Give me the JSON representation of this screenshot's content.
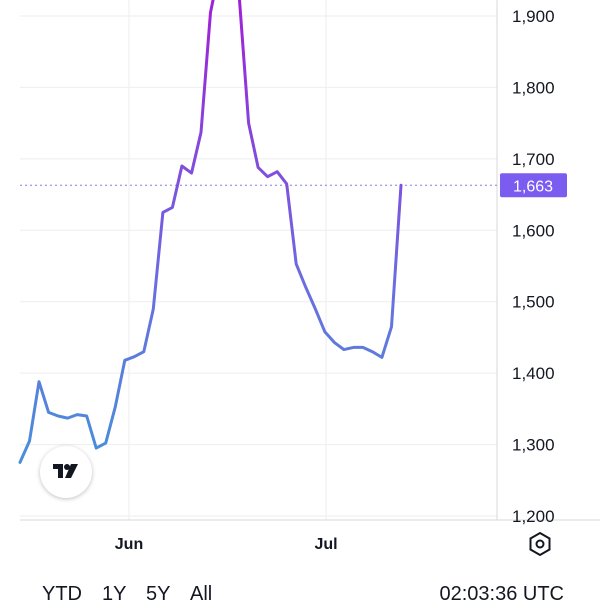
{
  "chart_data": {
    "type": "line",
    "x_labels": [
      "Jun",
      "Jul"
    ],
    "y_ticks": [
      1200,
      1300,
      1400,
      1500,
      1600,
      1700,
      1800,
      1900
    ],
    "y_tick_labels": [
      "1,200",
      "1,300",
      "1,400",
      "1,500",
      "1,600",
      "1,700",
      "1,800",
      "1,900"
    ],
    "ylim": [
      1200,
      1920
    ],
    "current_price": 1663,
    "current_price_label": "1,663",
    "grid": true,
    "colors": {
      "line_low": "#3d9ad6",
      "line_high": "#9b27d8",
      "price_tag": "#7b5cf0",
      "grid": "#eeeeee"
    },
    "series": [
      {
        "values": [
          1275,
          1305,
          1388,
          1345,
          1340,
          1337,
          1342,
          1340,
          1295,
          1302,
          1353,
          1418,
          1423,
          1430,
          1490,
          1625,
          1632,
          1690,
          1680,
          1737,
          1905,
          1970,
          1975,
          1930,
          1750,
          1688,
          1675,
          1682,
          1665,
          1553,
          1520,
          1490,
          1458,
          1443,
          1433,
          1436,
          1436,
          1430,
          1422,
          1465,
          1663
        ]
      }
    ]
  },
  "x_axis": {
    "jun_label": "Jun",
    "jul_label": "Jul"
  },
  "ranges": [
    "YTD",
    "1Y",
    "5Y",
    "All"
  ],
  "clock": "02:03:36 UTC",
  "icons": {
    "logo": "tradingview-logo-icon",
    "settings": "hexagon-settings-icon"
  }
}
